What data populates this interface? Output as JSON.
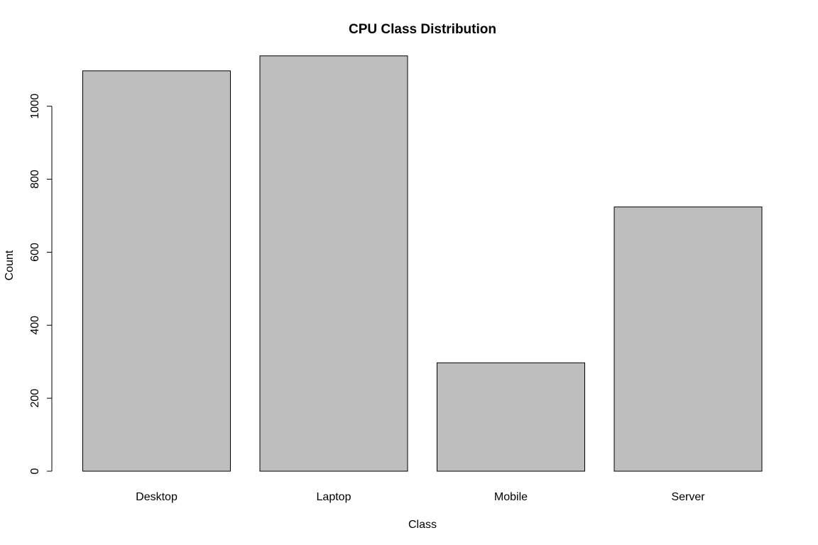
{
  "chart_data": {
    "type": "bar",
    "title": "CPU Class Distribution",
    "xlabel": "Class",
    "ylabel": "Count",
    "categories": [
      "Desktop",
      "Laptop",
      "Mobile",
      "Server"
    ],
    "values": [
      1097,
      1138,
      297,
      724
    ],
    "ylim": [
      0,
      1160
    ],
    "yticks": [
      0,
      200,
      400,
      600,
      800,
      1000
    ],
    "grid": false,
    "legend": "none",
    "colors": {
      "bar_fill": "#bebebe",
      "bar_stroke": "#000000",
      "axis": "#000000"
    }
  }
}
